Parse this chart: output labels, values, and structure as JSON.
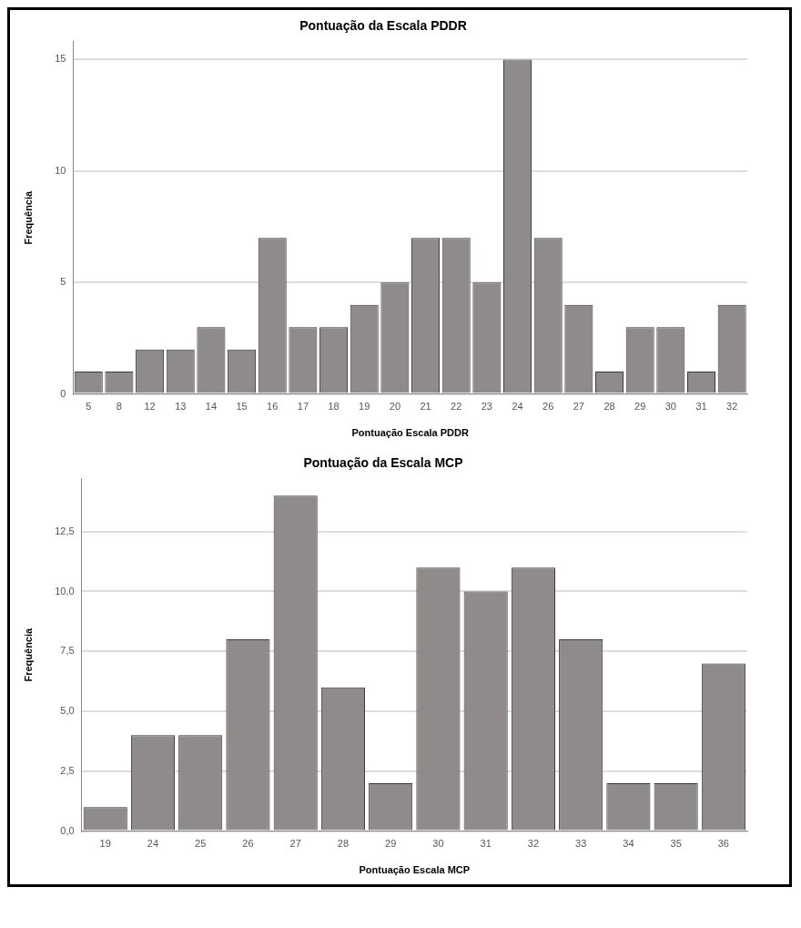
{
  "chart_data": [
    {
      "type": "bar",
      "title": "Pontuação da Escala PDDR",
      "xlabel": "Pontuação Escala PDDR",
      "ylabel": "Frequência",
      "categories": [
        "5",
        "8",
        "12",
        "13",
        "14",
        "15",
        "16",
        "17",
        "18",
        "19",
        "20",
        "21",
        "22",
        "23",
        "24",
        "26",
        "27",
        "28",
        "29",
        "30",
        "31",
        "32"
      ],
      "values": [
        1,
        1,
        2,
        2,
        3,
        2,
        7,
        3,
        3,
        4,
        5,
        7,
        7,
        5,
        15,
        7,
        4,
        1,
        3,
        3,
        1,
        4
      ],
      "color": "#8f8b8a",
      "ylim": [
        0,
        15.8
      ],
      "yticks": [
        0,
        5,
        10,
        15
      ],
      "grid": "y"
    },
    {
      "type": "bar",
      "title": "Pontuação da Escala MCP",
      "xlabel": "Pontuação Escala MCP",
      "ylabel": "Frequência",
      "categories": [
        "19",
        "24",
        "25",
        "26",
        "27",
        "28",
        "29",
        "30",
        "31",
        "32",
        "33",
        "34",
        "35",
        "36"
      ],
      "values": [
        1,
        4,
        4,
        8,
        14,
        6,
        2,
        11,
        10,
        11,
        8,
        2,
        2,
        7
      ],
      "color": "#8f8b8a",
      "ylim": [
        0,
        14.7
      ],
      "yticks": [
        {
          "value": 0,
          "label": "0,0"
        },
        {
          "value": 2.5,
          "label": "2,5"
        },
        {
          "value": 5,
          "label": "5,0"
        },
        {
          "value": 7.5,
          "label": "7,5"
        },
        {
          "value": 10,
          "label": "10,0"
        },
        {
          "value": 12.5,
          "label": "12,5"
        }
      ],
      "grid": "y"
    }
  ]
}
